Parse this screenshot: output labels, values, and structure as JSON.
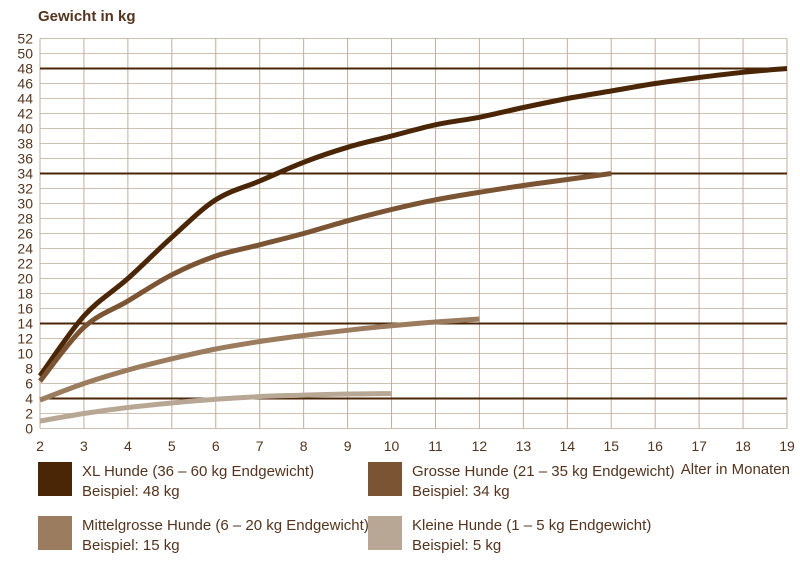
{
  "title": "Gewicht in kg",
  "x_axis_label": "Alter in Monaten",
  "colors": {
    "text": "#54341e",
    "grid_horizontal": "#cfc1b1",
    "grid_vertical": "#c2ae9b",
    "reference_line": "#4a2606",
    "background": "#ffffff"
  },
  "chart_data": {
    "type": "line",
    "title": "Gewicht in kg",
    "xlabel": "Alter in Monaten",
    "ylabel": "Gewicht in kg",
    "xlim": [
      2,
      19
    ],
    "ylim": [
      0,
      52
    ],
    "x_ticks": [
      2,
      3,
      4,
      5,
      6,
      7,
      8,
      9,
      10,
      11,
      12,
      13,
      14,
      15,
      16,
      17,
      18,
      19
    ],
    "y_ticks": [
      0,
      2,
      4,
      6,
      8,
      10,
      12,
      14,
      16,
      18,
      20,
      22,
      24,
      26,
      28,
      30,
      32,
      34,
      36,
      38,
      40,
      42,
      44,
      46,
      48,
      50,
      52
    ],
    "grid": true,
    "legend_position": "bottom",
    "reference_lines": [
      {
        "y": 48
      },
      {
        "y": 34
      },
      {
        "y": 14
      },
      {
        "y": 4
      }
    ],
    "series": [
      {
        "name": "XL Hunde (36 – 60 kg Endgewicht)",
        "example": "Beispiel: 48 kg",
        "color": "#4a2606",
        "x": [
          2,
          3,
          4,
          5,
          6,
          7,
          8,
          9,
          10,
          11,
          12,
          13,
          14,
          15,
          16,
          17,
          18,
          19
        ],
        "y": [
          7,
          15,
          20,
          25.5,
          30.5,
          33,
          35.5,
          37.5,
          39,
          40.5,
          41.5,
          42.8,
          44,
          45,
          46,
          46.8,
          47.5,
          48
        ]
      },
      {
        "name": "Grosse Hunde (21 – 35 kg Endgewicht)",
        "example": "Beispiel: 34 kg",
        "color": "#7b5433",
        "x": [
          2,
          3,
          4,
          5,
          6,
          7,
          8,
          9,
          10,
          11,
          12,
          13,
          14,
          15
        ],
        "y": [
          6.3,
          13.5,
          17,
          20.5,
          23,
          24.5,
          26,
          27.7,
          29.2,
          30.5,
          31.5,
          32.4,
          33.2,
          34
        ]
      },
      {
        "name": "Mittelgrosse Hunde (6 – 20 kg Endgewicht)",
        "example": "Beispiel: 15 kg",
        "color": "#9c7c5e",
        "x": [
          2,
          3,
          4,
          5,
          6,
          7,
          8,
          9,
          10,
          11,
          12
        ],
        "y": [
          3.8,
          6,
          7.8,
          9.3,
          10.6,
          11.6,
          12.4,
          13.1,
          13.7,
          14.2,
          14.6
        ]
      },
      {
        "name": "Kleine Hunde (1 – 5 kg Endgewicht)",
        "example": "Beispiel: 5 kg",
        "color": "#b9a795",
        "x": [
          2,
          3,
          4,
          5,
          6,
          7,
          8,
          9,
          10
        ],
        "y": [
          1,
          2,
          2.8,
          3.4,
          3.9,
          4.25,
          4.45,
          4.6,
          4.65
        ]
      }
    ]
  }
}
